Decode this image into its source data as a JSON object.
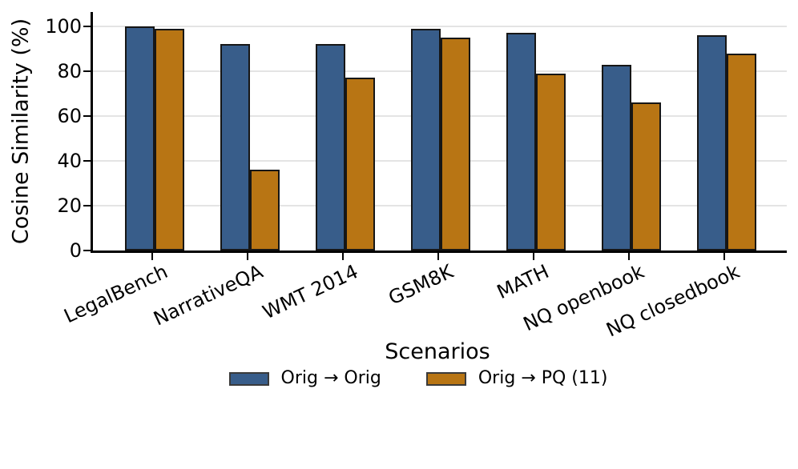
{
  "chart_data": {
    "type": "bar",
    "title": "",
    "xlabel": "Scenarios",
    "ylabel": "Cosine Similarity (%)",
    "categories": [
      "LegalBench",
      "NarrativeQA",
      "WMT 2014",
      "GSM8K",
      "MATH",
      "NQ openbook",
      "NQ closedbook"
    ],
    "series": [
      {
        "name": "Orig → Orig",
        "color": "#385d8a",
        "values": [
          100,
          92,
          92,
          99,
          97,
          83,
          96
        ]
      },
      {
        "name": "Orig → PQ (11)",
        "color": "#b87514",
        "values": [
          99,
          36,
          77,
          95,
          79,
          66,
          88
        ]
      }
    ],
    "ylim": [
      0,
      106
    ],
    "yticks": [
      0,
      20,
      40,
      60,
      80,
      100
    ],
    "grid": "horizontal",
    "grid_color": "#e4e4e4",
    "bar_edge_color": "#161616",
    "legend_position": "bottom-center"
  }
}
